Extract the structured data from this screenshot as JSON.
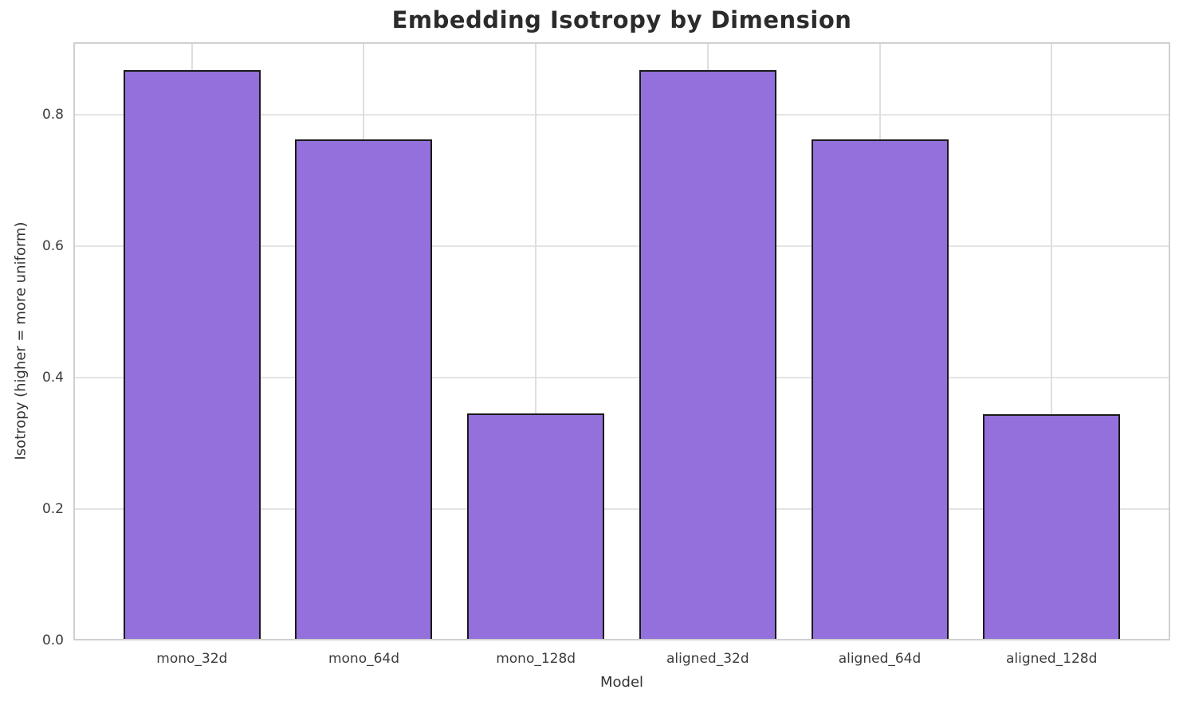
{
  "chart_data": {
    "type": "bar",
    "title": "Embedding Isotropy by Dimension",
    "xlabel": "Model",
    "ylabel": "Isotropy (higher = more uniform)",
    "categories": [
      "mono_32d",
      "mono_64d",
      "mono_128d",
      "aligned_32d",
      "aligned_64d",
      "aligned_128d"
    ],
    "values": [
      0.867,
      0.762,
      0.345,
      0.867,
      0.762,
      0.344
    ],
    "ytick_labels": [
      "0.0",
      "0.2",
      "0.4",
      "0.6",
      "0.8"
    ],
    "yticks": [
      0.0,
      0.2,
      0.4,
      0.6,
      0.8
    ],
    "ylim": [
      0,
      0.91
    ],
    "grid": true,
    "legend": "none",
    "bar_color": "#9370DB",
    "bar_edge_color": "#1a1a1a",
    "grid_color": "#e4e4e4",
    "spine_color": "#d0d0d0",
    "title_color": "#2b2b2b",
    "tick_color": "#3c3c3c"
  }
}
